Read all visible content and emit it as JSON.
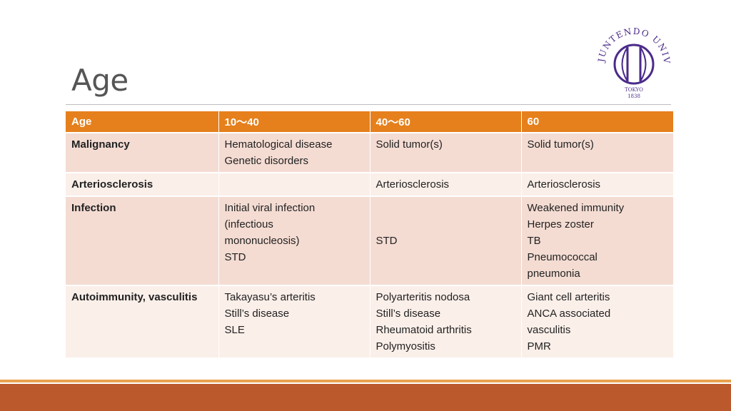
{
  "slide": {
    "title": "Age"
  },
  "logo": {
    "arc_text": "JUNTENDO UNIVERSITY",
    "city": "TOKYO",
    "year": "1838",
    "color": "#4a2a8a"
  },
  "table": {
    "header": [
      "Age",
      "10〜40",
      "40〜60",
      "60"
    ],
    "rows": [
      {
        "label": "Malignancy",
        "cells": [
          [
            "Hematological disease",
            "Genetic disorders"
          ],
          [
            "Solid tumor(s)"
          ],
          [
            "Solid tumor(s)"
          ]
        ]
      },
      {
        "label": "Arteriosclerosis",
        "cells": [
          [],
          [
            "Arteriosclerosis"
          ],
          [
            "Arteriosclerosis"
          ]
        ]
      },
      {
        "label": "Infection",
        "cells": [
          [
            "Initial viral infection",
            "(infectious",
            "mononucleosis)",
            "STD"
          ],
          [
            "STD"
          ],
          [
            "Weakened immunity",
            "Herpes zoster",
            "TB",
            "Pneumococcal",
            "pneumonia"
          ]
        ]
      },
      {
        "label": "Autoimmunity, vasculitis",
        "cells": [
          [
            "Takayasu’s arteritis",
            "Still’s disease",
            "SLE"
          ],
          [
            "Polyarteritis nodosa",
            "Still’s disease",
            "Rheumatoid arthritis",
            "Polymyositis"
          ],
          [
            "Giant cell arteritis",
            "ANCA associated",
            "vasculitis",
            "PMR"
          ]
        ]
      }
    ]
  },
  "colors": {
    "header_bg": "#e5801c",
    "row_dark": "#f4dcd3",
    "row_light": "#fbefe9",
    "footer_band": "#bb582c",
    "footer_line": "#e8a24c"
  }
}
